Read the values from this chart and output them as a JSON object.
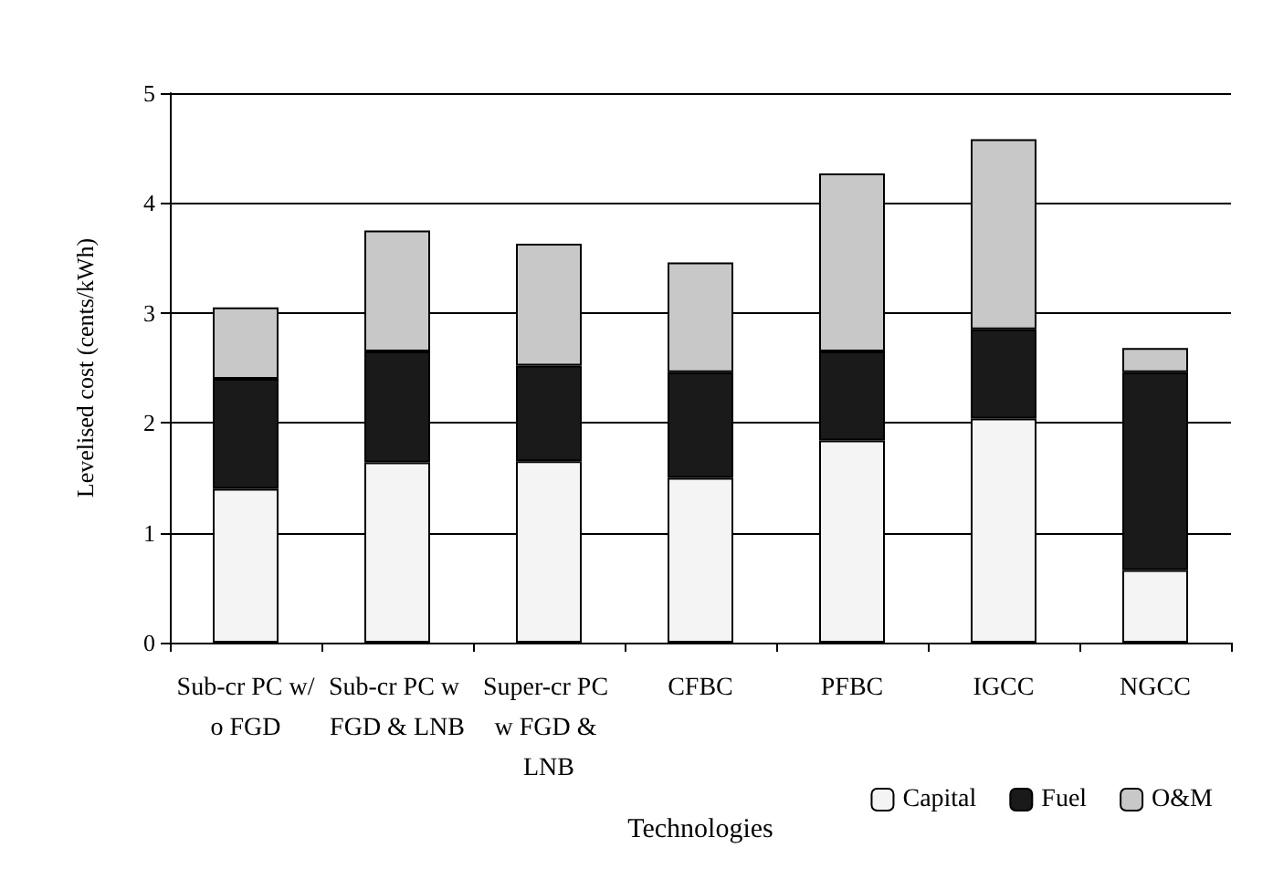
{
  "chart_data": {
    "type": "bar",
    "stacked": true,
    "xlabel": "Technologies",
    "ylabel": "Levelised cost (cents/kWh)",
    "categories": [
      "Sub-cr PC w/o FGD",
      "Sub-cr PC w FGD & LNB",
      "Super-cr PC w FGD & LNB",
      "CFBC",
      "PFBC",
      "IGCC",
      "NGCC"
    ],
    "series": [
      {
        "name": "Capital",
        "color": "#f4f4f4",
        "values": [
          1.4,
          1.64,
          1.65,
          1.5,
          1.84,
          2.04,
          0.66
        ]
      },
      {
        "name": "Fuel",
        "color": "#1a1a1a",
        "values": [
          1.0,
          1.01,
          0.87,
          0.96,
          0.81,
          0.81,
          1.8
        ]
      },
      {
        "name": "O&M",
        "color": "#c8c8c8",
        "values": [
          0.65,
          1.1,
          1.11,
          1.0,
          1.62,
          1.73,
          0.22
        ]
      }
    ],
    "ylim": [
      0,
      5
    ],
    "yticks": [
      0,
      1,
      2,
      3,
      4,
      5
    ],
    "grid": "y",
    "legend": "bottom right"
  }
}
